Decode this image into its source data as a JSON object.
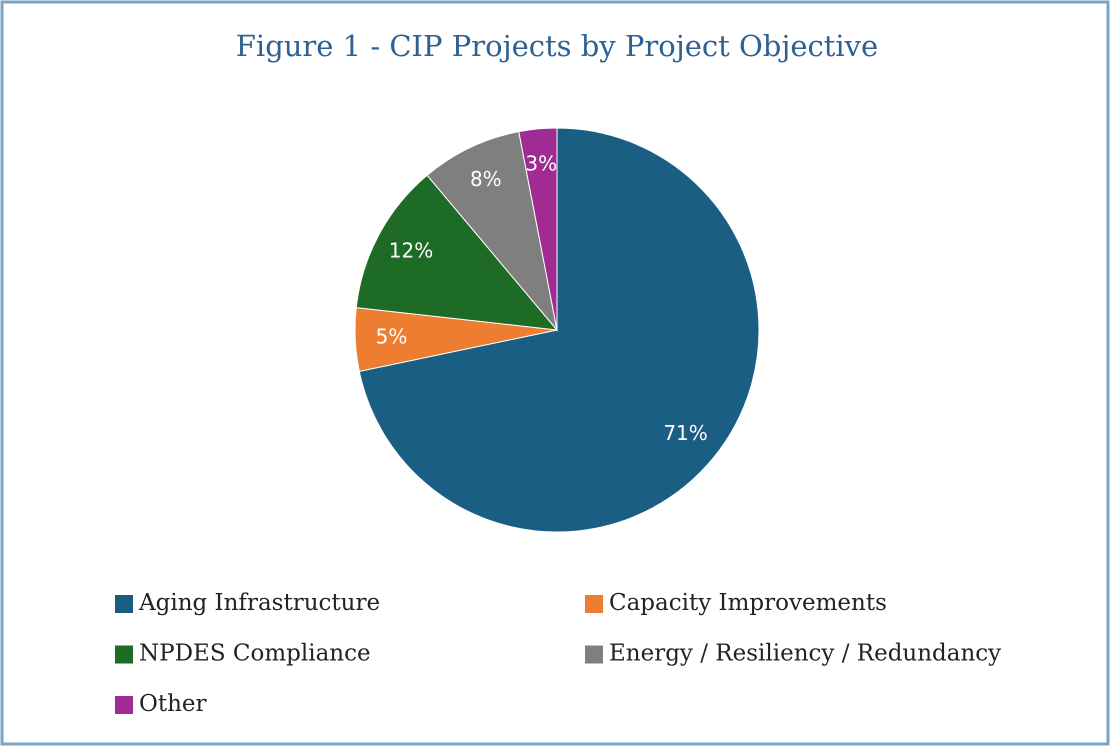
{
  "chart_data": {
    "type": "pie",
    "title": "Figure 1 - CIP Projects by Project Objective",
    "categories": [
      "Aging Infrastructure",
      "Capacity Improvements",
      "NPDES Compliance",
      "Energy / Resiliency / Redundancy",
      "Other"
    ],
    "values": [
      71,
      5,
      12,
      8,
      3
    ],
    "value_labels": [
      "71%",
      "5%",
      "12%",
      "8%",
      "3%"
    ],
    "colors": [
      "#1a5e84",
      "#ed7d31",
      "#1e6b26",
      "#7f7f7f",
      "#a02b93"
    ],
    "legend": "bottom"
  }
}
